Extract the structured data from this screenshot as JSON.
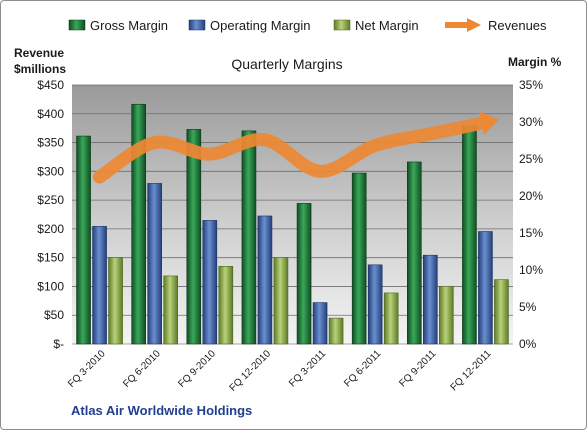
{
  "chart_data": {
    "type": "bar",
    "title": "Quarterly Margins",
    "company": "Atlas Air Worldwide Holdings",
    "ylabel_left": [
      "Revenue",
      "$millions"
    ],
    "ylabel_right": "Margin %",
    "categories": [
      "FQ 3-2010",
      "FQ 6-2010",
      "FQ 9-2010",
      "FQ 12-2010",
      "FQ 3-2011",
      "FQ 6-2011",
      "FQ 9-2011",
      "FQ 12-2011"
    ],
    "y_left_ticks": [
      "$-",
      "$50",
      "$100",
      "$150",
      "$200",
      "$250",
      "$300",
      "$350",
      "$400",
      "$450"
    ],
    "y_right_ticks": [
      "0%",
      "5%",
      "10%",
      "15%",
      "20%",
      "25%",
      "30%",
      "35%"
    ],
    "ylim_left": [
      0,
      450
    ],
    "ylim_right": [
      0,
      35
    ],
    "grid": true,
    "legend_position": "top",
    "series": [
      {
        "name": "Gross Margin",
        "kind": "bar",
        "axis": "right",
        "color": "#1e7a3c",
        "values": [
          28.1,
          32.4,
          29.0,
          28.8,
          19.0,
          23.1,
          24.6,
          29.5
        ]
      },
      {
        "name": "Operating Margin",
        "kind": "bar",
        "axis": "right",
        "color": "#3d5fa8",
        "values": [
          15.9,
          21.7,
          16.7,
          17.3,
          5.6,
          10.7,
          12.0,
          15.2
        ]
      },
      {
        "name": "Net Margin",
        "kind": "bar",
        "axis": "right",
        "color": "#8aa64a",
        "values": [
          11.7,
          9.2,
          10.5,
          11.7,
          3.5,
          6.9,
          7.8,
          8.7
        ]
      },
      {
        "name": "Revenues",
        "kind": "line",
        "axis": "left",
        "color": "#ee8833",
        "values": [
          290,
          350,
          330,
          355,
          300,
          345,
          365,
          385
        ]
      }
    ]
  }
}
